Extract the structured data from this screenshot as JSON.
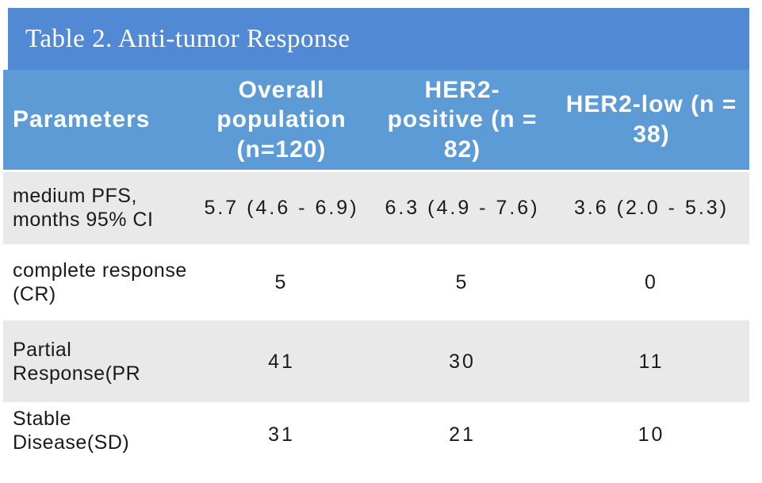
{
  "title": "Table 2. Anti-tumor Response",
  "table": {
    "columns": [
      {
        "label": "Parameters"
      },
      {
        "label": "Overall\npopulation\n(n=120)"
      },
      {
        "label": "HER2-\npositive (n =\n82)"
      },
      {
        "label": "HER2-low (n =\n38)"
      }
    ],
    "rows": [
      {
        "parameter": "medium PFS,\nmonths 95% CI",
        "values": [
          "5.7 (4.6 - 6.9)",
          "6.3 (4.9 - 7.6)",
          "3.6 (2.0 - 5.3)"
        ]
      },
      {
        "parameter": "complete response\n(CR)",
        "values": [
          "5",
          "5",
          "0"
        ]
      },
      {
        "parameter": "Partial\nResponse(PR",
        "values": [
          "41",
          "30",
          "11"
        ]
      },
      {
        "parameter": "Stable Disease(SD)",
        "values": [
          "31",
          "21",
          "10"
        ]
      }
    ]
  },
  "colors": {
    "title_bar_bg": "#5189D4",
    "header_bg": "#5C9BD5",
    "header_text": "#FFFFFF",
    "row_stripe_bg": "#E9E9E9",
    "row_plain_bg": "#FFFFFF",
    "body_text": "#1A1A1A"
  }
}
